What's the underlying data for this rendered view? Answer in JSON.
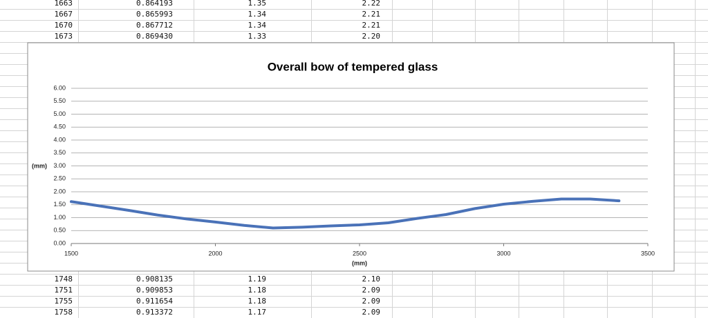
{
  "sheet": {
    "rows_top": [
      [
        "1663",
        "0.864193",
        "1.35",
        "2.22"
      ],
      [
        "1667",
        "0.865993",
        "1.34",
        "2.21"
      ],
      [
        "1670",
        "0.867712",
        "1.34",
        "2.21"
      ],
      [
        "1673",
        "0.869430",
        "1.33",
        "2.20"
      ]
    ],
    "rows_bottom": [
      [
        "1748",
        "0.908135",
        "1.19",
        "2.10"
      ],
      [
        "1751",
        "0.909853",
        "1.18",
        "2.09"
      ],
      [
        "1755",
        "0.911654",
        "1.18",
        "2.09"
      ],
      [
        "1758",
        "0.913372",
        "1.17",
        "2.09"
      ]
    ]
  },
  "chart_data": {
    "type": "line",
    "title": "Overall bow of tempered glass",
    "x_label": "(mm)",
    "y_label": "(mm)",
    "x": [
      1500,
      1600,
      1700,
      1800,
      1900,
      2000,
      2100,
      2200,
      2300,
      2400,
      2500,
      2600,
      2700,
      2800,
      2900,
      3000,
      3100,
      3200,
      3300,
      3400
    ],
    "series": [
      {
        "color": "#4a72b8",
        "values": [
          1.62,
          1.45,
          1.28,
          1.1,
          0.95,
          0.83,
          0.7,
          0.6,
          0.63,
          0.68,
          0.72,
          0.8,
          0.97,
          1.12,
          1.35,
          1.52,
          1.63,
          1.72,
          1.72,
          1.65
        ]
      }
    ],
    "xlim": [
      1500,
      3500
    ],
    "xticks": [
      1500,
      2000,
      2500,
      3000,
      3500
    ],
    "ylim": [
      0,
      6
    ],
    "yticks": [
      {
        "value": 0,
        "label": "0.00"
      },
      {
        "value": 0.5,
        "label": "0.50"
      },
      {
        "value": 1,
        "label": "1.00"
      },
      {
        "value": 1.5,
        "label": "1.50"
      },
      {
        "value": 2,
        "label": "2.00"
      },
      {
        "value": 2.5,
        "label": "2.50"
      },
      {
        "value": 3,
        "label": "3.00"
      },
      {
        "value": 3.5,
        "label": "3.50"
      },
      {
        "value": 4,
        "label": "4.00"
      },
      {
        "value": 4.5,
        "label": "4.50"
      },
      {
        "value": 5,
        "label": "5.00"
      },
      {
        "value": 5.5,
        "label": "5.50"
      },
      {
        "value": 6,
        "label": "6.00"
      }
    ],
    "grid": true
  }
}
